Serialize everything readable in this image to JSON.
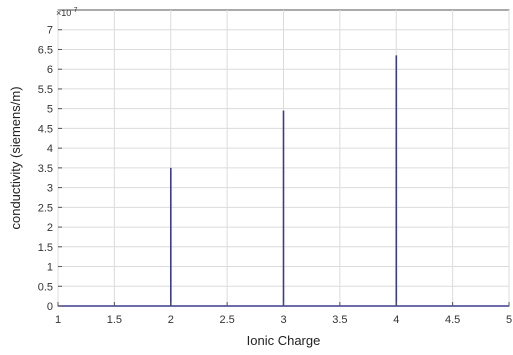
{
  "chart_data": {
    "type": "line",
    "title": "",
    "xlabel": "Ionic Charge",
    "ylabel": "conductivity (siemens/m)",
    "y_multiplier": "×10",
    "y_multiplier_exp": "-7",
    "xlim": [
      1,
      5
    ],
    "ylim": [
      0,
      7.5
    ],
    "x_ticks": [
      1,
      1.5,
      2,
      2.5,
      3,
      3.5,
      4,
      4.5,
      5
    ],
    "x_tick_labels": [
      "1",
      "1.5",
      "2",
      "2.5",
      "3",
      "3.5",
      "4",
      "4.5",
      "5"
    ],
    "y_ticks": [
      0,
      0.5,
      1,
      1.5,
      2,
      2.5,
      3,
      3.5,
      4,
      4.5,
      5,
      5.5,
      6,
      6.5,
      7
    ],
    "y_tick_labels": [
      "0",
      "0.5",
      "1",
      "1.5",
      "2",
      "2.5",
      "3",
      "3.5",
      "4",
      "4.5",
      "5",
      "5.5",
      "6",
      "6.5",
      "7"
    ],
    "grid": true,
    "series": [
      {
        "color": "#3b3b8f",
        "x": [
          1,
          2,
          2,
          2,
          3,
          3,
          3,
          4,
          4,
          4,
          5
        ],
        "y": [
          0,
          0,
          3.5,
          0,
          0,
          4.95,
          0,
          0,
          6.35,
          0,
          0
        ]
      }
    ]
  }
}
